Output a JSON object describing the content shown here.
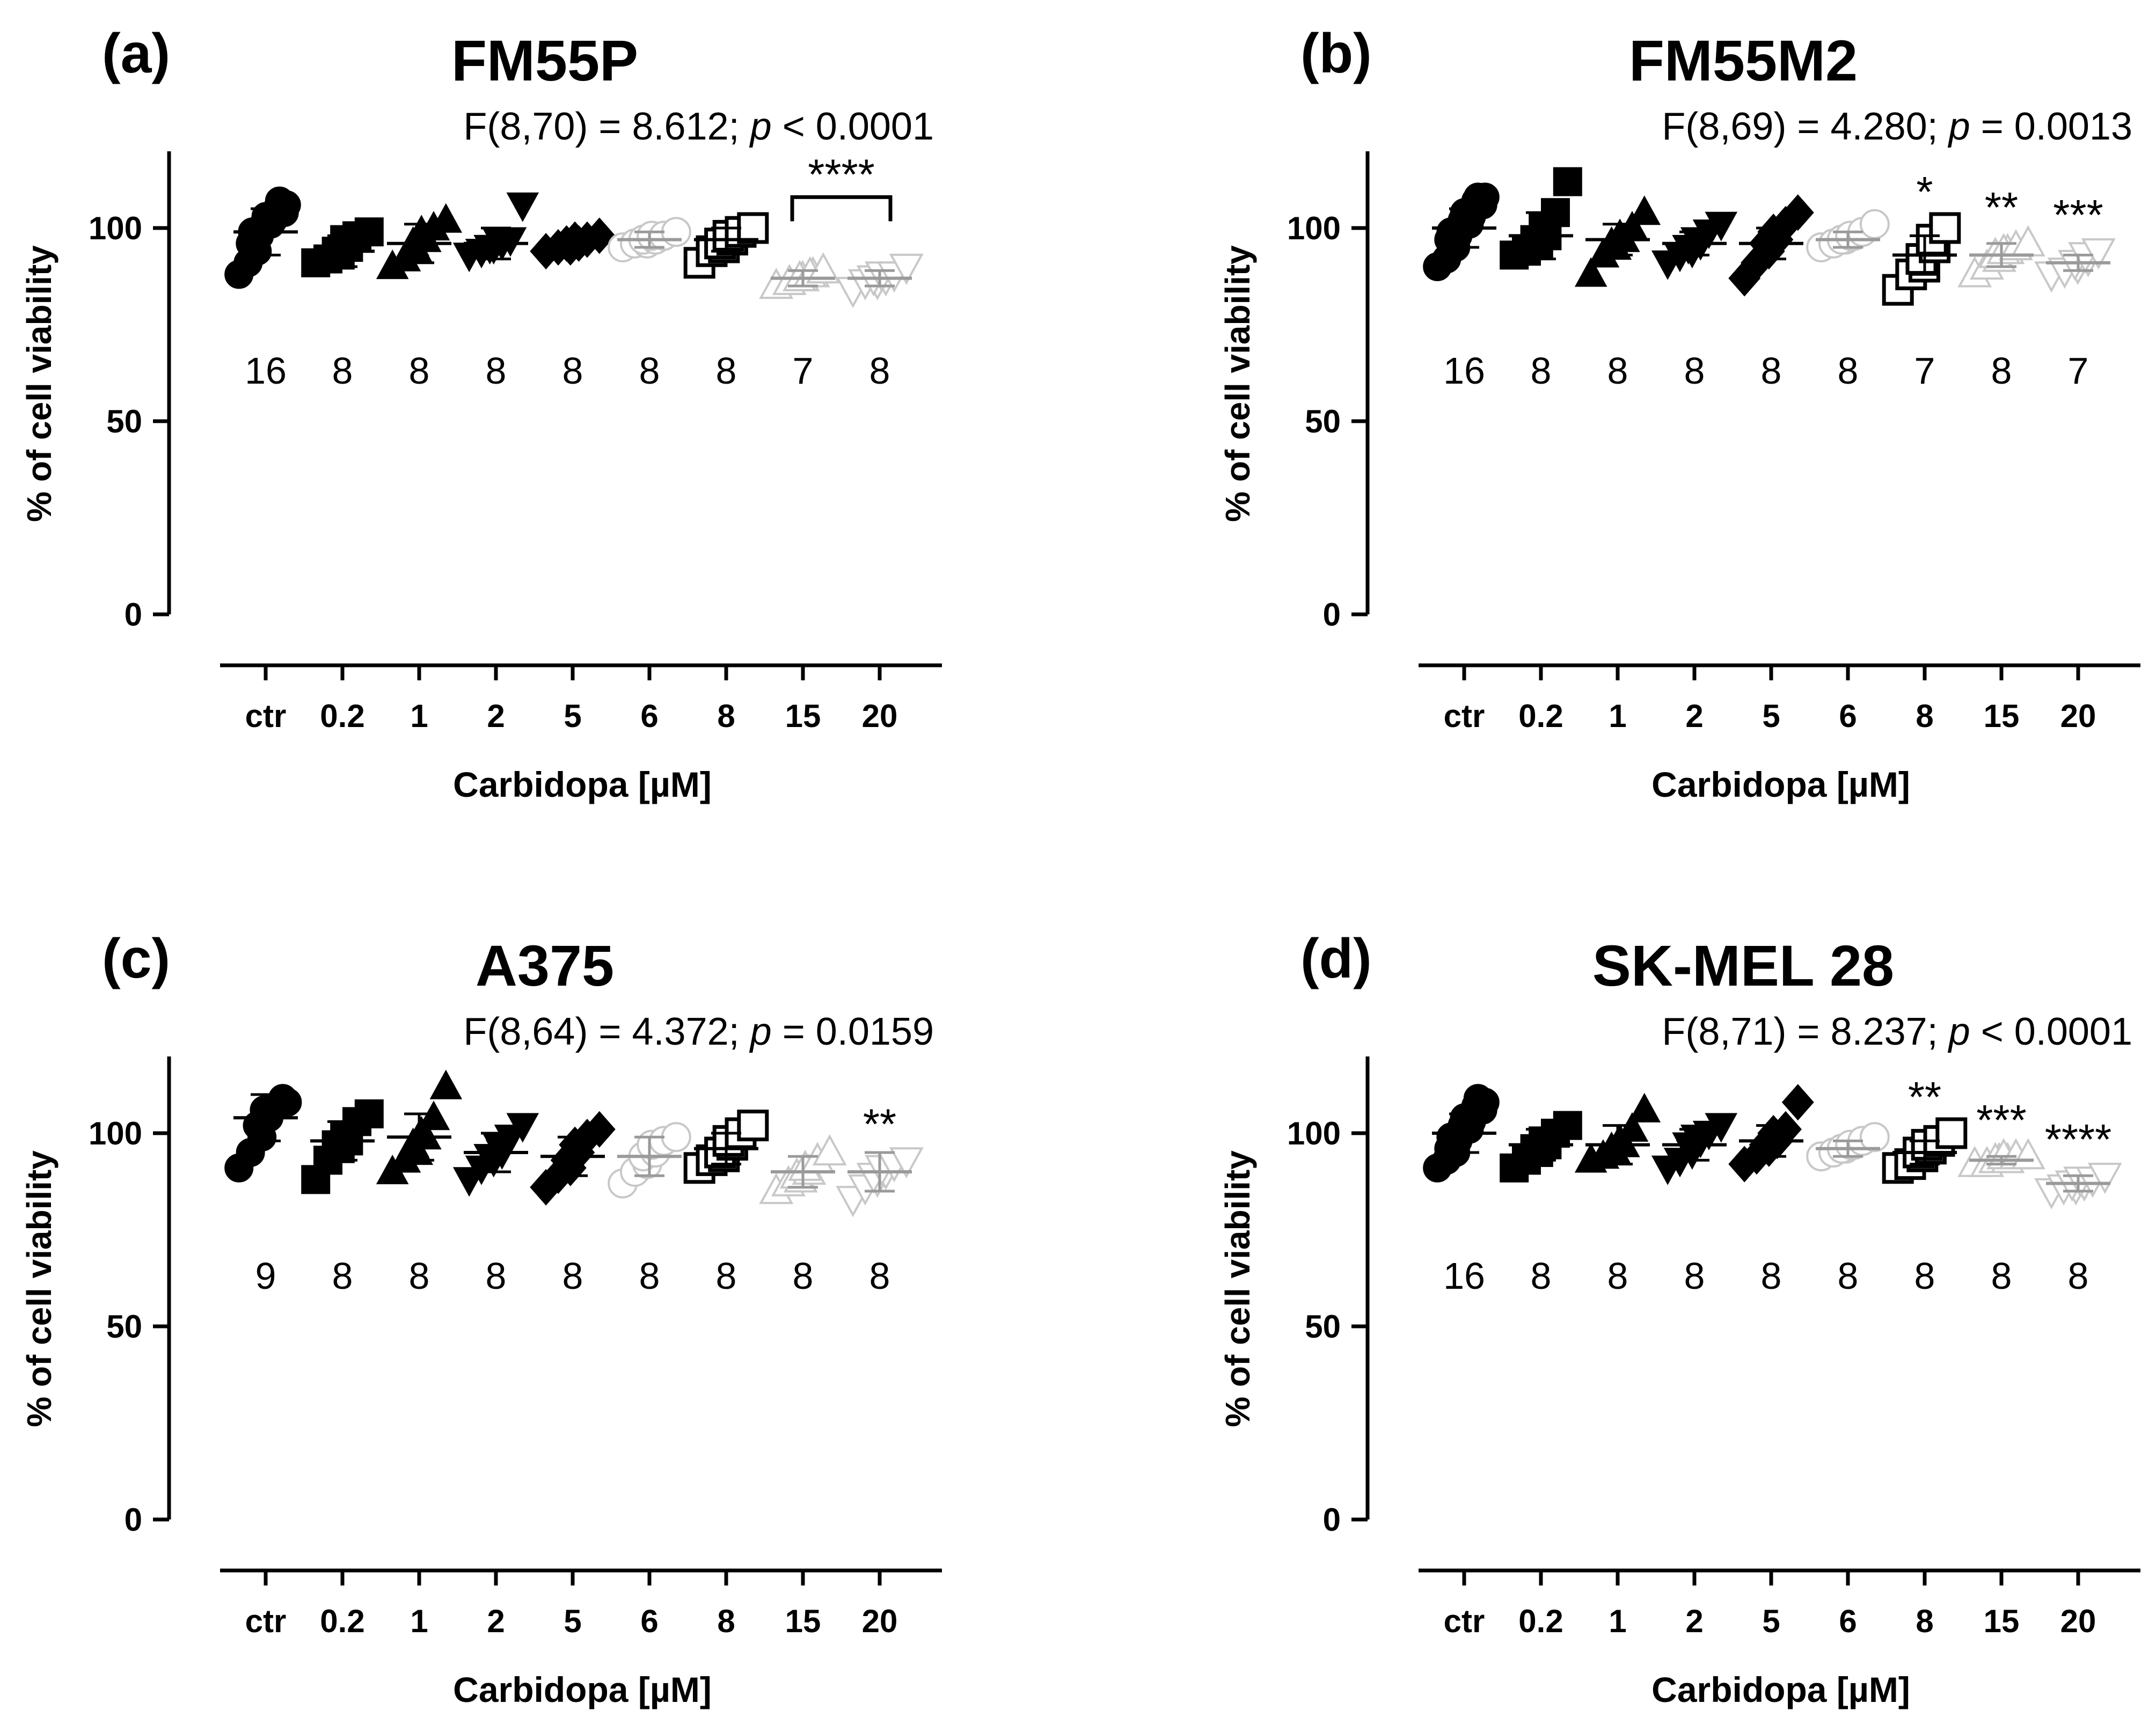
{
  "chart_data": [
    {
      "type": "scatter",
      "panel": "(a)",
      "title": "FM55P",
      "stat_prefix": "F(8,70) = 8.612; ",
      "stat_p": "p",
      "stat_suffix": " < 0.0001",
      "xlabel": "Carbidopa [µM]",
      "ylabel": "% of cell viability",
      "ylim": [
        0,
        120
      ],
      "yticks": [
        0,
        50,
        100
      ],
      "categories": [
        "ctr",
        "0.2",
        "1",
        "2",
        "5",
        "6",
        "8",
        "15",
        "20"
      ],
      "markers": [
        "circle",
        "square",
        "triangle-up",
        "triangle-down",
        "diamond",
        "circle-open",
        "square-open",
        "triangle-up-open",
        "triangle-down-open"
      ],
      "means": [
        99,
        94,
        96,
        96,
        96,
        97,
        97,
        87,
        87
      ],
      "sd": [
        6,
        4,
        5,
        4,
        2,
        2,
        3,
        2,
        2
      ],
      "points": [
        [
          88,
          91,
          94,
          96,
          98,
          99,
          100,
          101,
          101,
          102,
          103,
          104,
          104,
          105,
          106,
          107
        ],
        [
          91,
          92,
          93,
          94,
          95,
          97,
          98,
          99
        ],
        [
          90,
          92,
          94,
          96,
          97,
          99,
          100,
          102
        ],
        [
          93,
          94,
          95,
          95,
          96,
          97,
          97,
          106
        ],
        [
          94,
          95,
          95,
          96,
          96,
          97,
          97,
          98
        ],
        [
          95,
          96,
          96,
          97,
          97,
          98,
          98,
          99
        ],
        [
          91,
          94,
          95,
          96,
          97,
          98,
          99,
          100
        ],
        [
          85,
          86,
          87,
          87,
          88,
          88,
          89
        ],
        [
          84,
          86,
          86,
          87,
          87,
          88,
          88,
          90
        ]
      ],
      "n_counts": [
        "16",
        "8",
        "8",
        "8",
        "8",
        "8",
        "8",
        "7",
        "8"
      ],
      "significance": [
        "",
        "",
        "",
        "",
        "",
        "",
        "",
        "****",
        "****"
      ],
      "bracket": {
        "from": 7,
        "to": 8,
        "label": "****"
      }
    },
    {
      "type": "scatter",
      "panel": "(b)",
      "title": "FM55M2",
      "stat_prefix": "F(8,69) = 4.280; ",
      "stat_p": "p",
      "stat_suffix": " = 0.0013",
      "xlabel": "Carbidopa [µM]",
      "ylabel": "% of cell viability",
      "ylim": [
        0,
        120
      ],
      "yticks": [
        0,
        50,
        100
      ],
      "categories": [
        "ctr",
        "0.2",
        "1",
        "2",
        "5",
        "6",
        "8",
        "15",
        "20"
      ],
      "markers": [
        "circle",
        "square",
        "triangle-up",
        "triangle-down",
        "diamond",
        "circle-open",
        "square-open",
        "triangle-up-open",
        "triangle-down-open"
      ],
      "means": [
        100,
        98,
        97,
        96,
        96,
        97,
        93,
        93,
        91
      ],
      "sd": [
        5,
        6,
        4,
        3,
        4,
        2,
        5,
        3,
        2
      ],
      "points": [
        [
          90,
          92,
          95,
          97,
          98,
          99,
          100,
          101,
          102,
          103,
          104,
          105,
          106,
          107,
          108,
          108
        ],
        [
          93,
          94,
          96,
          97,
          98,
          100,
          104,
          112
        ],
        [
          88,
          93,
          95,
          96,
          97,
          98,
          100,
          104
        ],
        [
          91,
          93,
          94,
          95,
          96,
          97,
          99,
          101
        ],
        [
          87,
          91,
          94,
          96,
          97,
          99,
          101,
          104
        ],
        [
          95,
          96,
          97,
          97,
          98,
          98,
          99,
          101
        ],
        [
          84,
          88,
          90,
          92,
          95,
          97,
          100
        ],
        [
          88,
          90,
          92,
          93,
          94,
          94,
          95,
          96
        ],
        [
          88,
          89,
          90,
          91,
          92,
          93,
          94
        ]
      ],
      "n_counts": [
        "16",
        "8",
        "8",
        "8",
        "8",
        "8",
        "7",
        "8",
        "7"
      ],
      "significance": [
        "",
        "",
        "",
        "",
        "",
        "",
        "*",
        "**",
        "***"
      ]
    },
    {
      "type": "scatter",
      "panel": "(c)",
      "title": "A375",
      "stat_prefix": "F(8,64) = 4.372; ",
      "stat_p": "p",
      "stat_suffix": " = 0.0159",
      "xlabel": "Carbidopa [µM]",
      "ylabel": "% of cell viability",
      "ylim": [
        0,
        120
      ],
      "yticks": [
        0,
        50,
        100
      ],
      "categories": [
        "ctr",
        "0.2",
        "1",
        "2",
        "5",
        "6",
        "8",
        "15",
        "20"
      ],
      "markers": [
        "circle",
        "square",
        "triangle-up",
        "triangle-down",
        "diamond",
        "circle-open",
        "square-open",
        "triangle-up-open",
        "triangle-down-open"
      ],
      "means": [
        104,
        98,
        99,
        95,
        94,
        94,
        96,
        90,
        90
      ],
      "sd": [
        6,
        5,
        6,
        5,
        5,
        5,
        4,
        4,
        5
      ],
      "points": [
        [
          91,
          95,
          99,
          102,
          104,
          106,
          107,
          108,
          109
        ],
        [
          88,
          93,
          96,
          97,
          98,
          99,
          103,
          105
        ],
        [
          90,
          93,
          95,
          97,
          99,
          100,
          104,
          112
        ],
        [
          88,
          91,
          93,
          94,
          95,
          97,
          99,
          102
        ],
        [
          86,
          89,
          91,
          93,
          95,
          97,
          99,
          101
        ],
        [
          87,
          90,
          92,
          94,
          95,
          97,
          98,
          99
        ],
        [
          91,
          93,
          94,
          95,
          97,
          98,
          100,
          102
        ],
        [
          85,
          87,
          88,
          89,
          90,
          91,
          93,
          95
        ],
        [
          83,
          86,
          88,
          89,
          90,
          91,
          92,
          93
        ]
      ],
      "n_counts": [
        "9",
        "8",
        "8",
        "8",
        "8",
        "8",
        "8",
        "8",
        "8"
      ],
      "significance": [
        "",
        "",
        "",
        "",
        "",
        "",
        "",
        "",
        "**"
      ]
    },
    {
      "type": "scatter",
      "panel": "(d)",
      "title": "SK-MEL 28",
      "stat_prefix": "F(8,71) = 8.237; ",
      "stat_p": "p",
      "stat_suffix": " < 0.0001",
      "xlabel": "Carbidopa [µM]",
      "ylabel": "% of cell viability",
      "ylim": [
        0,
        120
      ],
      "yticks": [
        0,
        50,
        100
      ],
      "categories": [
        "ctr",
        "0.2",
        "1",
        "2",
        "5",
        "6",
        "8",
        "15",
        "20"
      ],
      "markers": [
        "circle",
        "square",
        "triangle-up",
        "triangle-down",
        "diamond",
        "circle-open",
        "square-open",
        "triangle-up-open",
        "triangle-down-open"
      ],
      "means": [
        100,
        97,
        97,
        97,
        98,
        96,
        95,
        93,
        87
      ],
      "sd": [
        5,
        4,
        5,
        4,
        4,
        2,
        3,
        1,
        2
      ],
      "points": [
        [
          91,
          93,
          95,
          96,
          98,
          99,
          100,
          101,
          102,
          103,
          104,
          105,
          106,
          107,
          108,
          109
        ],
        [
          91,
          93,
          95,
          96,
          97,
          98,
          100,
          102
        ],
        [
          93,
          94,
          95,
          96,
          97,
          98,
          101,
          106
        ],
        [
          91,
          93,
          95,
          97,
          98,
          99,
          100,
          102
        ],
        [
          92,
          94,
          96,
          97,
          98,
          100,
          101,
          108
        ],
        [
          94,
          95,
          96,
          96,
          97,
          97,
          98,
          99
        ],
        [
          91,
          92,
          94,
          95,
          96,
          97,
          98,
          100
        ],
        [
          92,
          92,
          93,
          93,
          93,
          94,
          94,
          94
        ],
        [
          85,
          86,
          86,
          87,
          87,
          88,
          88,
          89
        ]
      ],
      "n_counts": [
        "16",
        "8",
        "8",
        "8",
        "8",
        "8",
        "8",
        "8",
        "8"
      ],
      "significance": [
        "",
        "",
        "",
        "",
        "",
        "",
        "**",
        "***",
        "****"
      ]
    }
  ]
}
